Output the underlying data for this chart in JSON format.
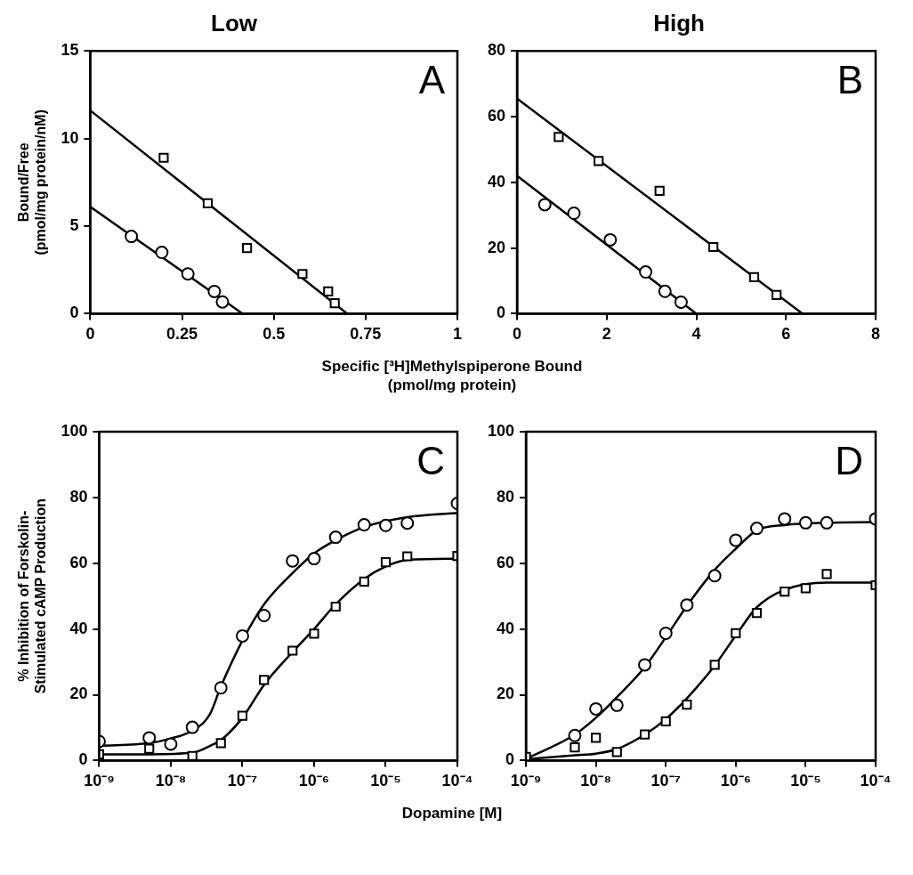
{
  "chart_data": [
    {
      "type": "scatter",
      "title": "Low",
      "ylabel": "Bound/Free\n(pmol/mg protein/nM)",
      "xlabel": "Specific [³H]Methylspiperone Bound\n(pmol/mg protein)",
      "annotations": [
        "A"
      ],
      "xlim": [
        0,
        1
      ],
      "xticks": [
        0,
        0.25,
        0.5,
        0.75,
        1
      ],
      "ylim": [
        0,
        15
      ],
      "yticks": [
        0,
        5,
        10,
        15
      ],
      "grid": false,
      "legend": false,
      "series": [
        {
          "type": "line",
          "color": "#000000",
          "x": [
            0,
            0.7
          ],
          "values": [
            11.6,
            0
          ]
        },
        {
          "type": "line",
          "color": "#000000",
          "x": [
            0,
            0.415
          ],
          "values": [
            6.1,
            0
          ]
        },
        {
          "type": "scatter",
          "marker": "square",
          "color": "#000000",
          "x": [
            0.2,
            0.32,
            0.427,
            0.578,
            0.648,
            0.666
          ],
          "values": [
            8.9,
            6.3,
            3.75,
            2.27,
            1.27,
            0.6
          ]
        },
        {
          "type": "scatter",
          "marker": "circle",
          "color": "#000000",
          "x": [
            0.112,
            0.195,
            0.266,
            0.338,
            0.36
          ],
          "values": [
            4.41,
            3.5,
            2.27,
            1.27,
            0.67
          ]
        }
      ]
    },
    {
      "type": "scatter",
      "title": "High",
      "annotations": [
        "B"
      ],
      "xlim": [
        0,
        8
      ],
      "xticks": [
        0,
        2,
        4,
        6,
        8
      ],
      "ylim": [
        0,
        80
      ],
      "yticks": [
        0,
        20,
        40,
        60,
        80
      ],
      "grid": false,
      "legend": false,
      "series": [
        {
          "type": "line",
          "color": "#000000",
          "x": [
            0,
            6.37
          ],
          "values": [
            65.5,
            0
          ]
        },
        {
          "type": "line",
          "color": "#000000",
          "x": [
            0,
            4.0
          ],
          "values": [
            42,
            0
          ]
        },
        {
          "type": "scatter",
          "marker": "square",
          "color": "#000000",
          "x": [
            0.93,
            1.82,
            3.18,
            4.38,
            5.29,
            5.79
          ],
          "values": [
            53.8,
            46.5,
            37.4,
            20.3,
            11.1,
            5.7
          ]
        },
        {
          "type": "scatter",
          "marker": "circle",
          "color": "#000000",
          "x": [
            0.62,
            1.27,
            2.08,
            2.87,
            3.3,
            3.66
          ],
          "values": [
            33.2,
            30.6,
            22.5,
            12.7,
            6.8,
            3.5
          ]
        }
      ]
    },
    {
      "type": "scatter",
      "ylabel": "% Inhibition of Forskolin-\nStimulated cAMP Production",
      "xlabel": "Dopamine [M]",
      "annotations": [
        "C"
      ],
      "log": "x",
      "xlim": [
        1e-09,
        0.0001
      ],
      "xticks": [
        {
          "value": 1e-09,
          "label": "10⁻⁹"
        },
        {
          "value": 1e-08,
          "label": "10⁻⁸"
        },
        {
          "value": 1e-07,
          "label": "10⁻⁷"
        },
        {
          "value": 1e-06,
          "label": "10⁻⁶"
        },
        {
          "value": 1e-05,
          "label": "10⁻⁵"
        },
        {
          "value": 0.0001,
          "label": "10⁻⁴"
        }
      ],
      "ylim": [
        0,
        100
      ],
      "yticks": [
        0,
        20,
        40,
        60,
        80,
        100
      ],
      "grid": false,
      "legend": false,
      "series": [
        {
          "type": "line",
          "color": "#000000",
          "x": [
            1e-09,
            5e-09,
            1e-08,
            2e-08,
            3.5e-08,
            5e-08,
            1e-07,
            2e-07,
            5e-07,
            1e-06,
            2e-06,
            5e-06,
            2e-05,
            0.0001
          ],
          "values": [
            4.5,
            5.3,
            6.7,
            9.1,
            14,
            22.5,
            36.5,
            47.5,
            57,
            63,
            67,
            71,
            74,
            75.3
          ]
        },
        {
          "type": "line",
          "color": "#000000",
          "x": [
            1e-09,
            5e-09,
            2e-08,
            3.8e-08,
            5e-08,
            1e-07,
            2e-07,
            5e-07,
            1e-06,
            2e-06,
            5e-06,
            1e-05,
            2e-05,
            0.0001
          ],
          "values": [
            1.9,
            1.9,
            2.4,
            4.8,
            6.2,
            13,
            23,
            33,
            40,
            47.5,
            55.2,
            59,
            61,
            61.4
          ]
        },
        {
          "type": "scatter",
          "marker": "circle",
          "color": "#000000",
          "x": [
            1e-09,
            5e-09,
            1e-08,
            2e-08,
            5e-08,
            1e-07,
            2e-07,
            5e-07,
            1e-06,
            2e-06,
            5e-06,
            1e-05,
            2e-05,
            0.0001
          ],
          "values": [
            5.8,
            6.9,
            5,
            10.1,
            22.1,
            37.9,
            44.1,
            60.7,
            61.4,
            67.9,
            71.7,
            71.5,
            72.2,
            78.2
          ]
        },
        {
          "type": "scatter",
          "marker": "square",
          "color": "#000000",
          "x": [
            1e-09,
            5e-09,
            2e-08,
            5e-08,
            1e-07,
            2e-07,
            5e-07,
            1e-06,
            2e-06,
            5e-06,
            1e-05,
            2e-05,
            0.0001
          ],
          "values": [
            1.9,
            3.6,
            1.4,
            5.3,
            13.6,
            24.5,
            33.4,
            38.6,
            46.8,
            54.4,
            60.3,
            62.1,
            62.2
          ]
        }
      ]
    },
    {
      "type": "scatter",
      "annotations": [
        "D"
      ],
      "log": "x",
      "xlim": [
        1e-09,
        0.0001
      ],
      "xticks": [
        {
          "value": 1e-09,
          "label": "10⁻⁹"
        },
        {
          "value": 1e-08,
          "label": "10⁻⁸"
        },
        {
          "value": 1e-07,
          "label": "10⁻⁷"
        },
        {
          "value": 1e-06,
          "label": "10⁻⁶"
        },
        {
          "value": 1e-05,
          "label": "10⁻⁵"
        },
        {
          "value": 0.0001,
          "label": "10⁻⁴"
        }
      ],
      "ylim": [
        0,
        100
      ],
      "yticks": [
        0,
        20,
        40,
        60,
        80,
        100
      ],
      "grid": false,
      "legend": false,
      "series": [
        {
          "type": "line",
          "color": "#000000",
          "x": [
            1e-09,
            5e-09,
            1e-08,
            2e-08,
            5e-08,
            1e-07,
            2e-07,
            5e-07,
            1e-06,
            2e-06,
            5e-06,
            2e-05,
            0.0001
          ],
          "values": [
            0.5,
            7.9,
            13,
            19.3,
            28.4,
            37.5,
            47,
            58,
            64.4,
            70,
            71.6,
            72.3,
            72.5
          ]
        },
        {
          "type": "line",
          "color": "#000000",
          "x": [
            1e-09,
            5e-09,
            1e-08,
            2e-08,
            5e-08,
            1e-07,
            2e-07,
            5e-07,
            1e-06,
            2e-06,
            5e-06,
            2e-05,
            0.0001
          ],
          "values": [
            0.4,
            1.6,
            2.1,
            3.5,
            7.9,
            12.6,
            18.9,
            28.9,
            38,
            46.6,
            51.9,
            54.1,
            54.1
          ]
        },
        {
          "type": "scatter",
          "marker": "circle",
          "color": "#000000",
          "x": [
            5e-09,
            1e-08,
            2e-08,
            5e-08,
            1e-07,
            2e-07,
            5e-07,
            1e-06,
            2e-06,
            5e-06,
            1e-05,
            2e-05,
            0.0001
          ],
          "values": [
            7.6,
            15.7,
            16.8,
            29.1,
            38.7,
            47.3,
            56.2,
            67,
            70.6,
            73.5,
            72.3,
            72.3,
            73.5
          ]
        },
        {
          "type": "scatter",
          "marker": "square",
          "color": "#000000",
          "x": [
            1e-09,
            5e-09,
            1e-08,
            2e-08,
            5e-08,
            1e-07,
            2e-07,
            5e-07,
            1e-06,
            2e-06,
            5e-06,
            1e-05,
            2e-05,
            0.0001
          ],
          "values": [
            1.1,
            4,
            6.9,
            2.6,
            7.9,
            11.9,
            17,
            29.1,
            38.7,
            44.9,
            51.4,
            52.4,
            56.7,
            53.3
          ]
        }
      ]
    }
  ]
}
